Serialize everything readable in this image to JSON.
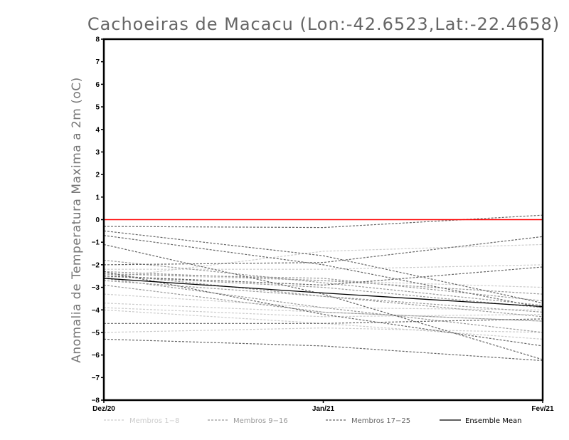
{
  "chart_data": {
    "type": "line",
    "title": "Cachoeiras de Macacu (Lon:-42.6523,Lat:-22.4658)",
    "xlabel": "",
    "ylabel": "Anomalia de Temperatura Maxima a 2m (oC)",
    "categories": [
      "Dez/20",
      "Jan/21",
      "Fev/21"
    ],
    "ylim": [
      -8,
      8
    ],
    "yticks": [
      -8,
      -7,
      -6,
      -5,
      -4,
      -3,
      -2,
      -1,
      0,
      1,
      2,
      3,
      4,
      5,
      6,
      7,
      8
    ],
    "grid": false,
    "legend_position": "bottom",
    "reference_line": {
      "value": 0,
      "color": "#ff0000"
    },
    "legend": [
      {
        "label": "Membros 1-8",
        "color": "#cccccc",
        "dash": "dashed"
      },
      {
        "label": "Membros 9-16",
        "color": "#999999",
        "dash": "dashed"
      },
      {
        "label": "Membros 17-25",
        "color": "#666666",
        "dash": "dashed"
      },
      {
        "label": "Ensemble Mean",
        "color": "#000000",
        "dash": "solid"
      }
    ],
    "series": [
      {
        "group": 1,
        "values": [
          -3.3,
          -3.9,
          -4.0
        ]
      },
      {
        "group": 1,
        "values": [
          -3.7,
          -4.1,
          -4.5
        ]
      },
      {
        "group": 1,
        "values": [
          -4.0,
          -4.6,
          -5.3
        ]
      },
      {
        "group": 1,
        "values": [
          -5.0,
          -4.8,
          -5.0
        ]
      },
      {
        "group": 1,
        "values": [
          -2.6,
          -1.4,
          -1.1
        ]
      },
      {
        "group": 1,
        "values": [
          -2.4,
          -2.7,
          -3.0
        ]
      },
      {
        "group": 1,
        "values": [
          -3.9,
          -4.3,
          -4.2
        ]
      },
      {
        "group": 1,
        "values": [
          -2.2,
          -2.2,
          -2.0
        ]
      },
      {
        "group": 2,
        "values": [
          -2.5,
          -3.0,
          -3.9
        ]
      },
      {
        "group": 2,
        "values": [
          -2.7,
          -3.4,
          -4.1
        ]
      },
      {
        "group": 2,
        "values": [
          -2.3,
          -2.7,
          -3.3
        ]
      },
      {
        "group": 2,
        "values": [
          -2.4,
          -2.6,
          -3.6
        ]
      },
      {
        "group": 2,
        "values": [
          -1.8,
          -2.8,
          -3.8
        ]
      },
      {
        "group": 2,
        "values": [
          -2.9,
          -4.1,
          -4.5
        ]
      },
      {
        "group": 2,
        "values": [
          -2.6,
          -3.9,
          -5.0
        ]
      },
      {
        "group": 2,
        "values": [
          -2.4,
          -3.4,
          -4.3
        ]
      },
      {
        "group": 3,
        "values": [
          -0.3,
          -0.35,
          0.2
        ]
      },
      {
        "group": 3,
        "values": [
          -0.5,
          -1.6,
          -3.7
        ]
      },
      {
        "group": 3,
        "values": [
          -0.7,
          -2.0,
          -3.9
        ]
      },
      {
        "group": 3,
        "values": [
          -1.1,
          -3.3,
          -6.2
        ]
      },
      {
        "group": 3,
        "values": [
          -2.0,
          -1.9,
          -0.75
        ]
      },
      {
        "group": 3,
        "values": [
          -2.5,
          -2.9,
          -2.1
        ]
      },
      {
        "group": 3,
        "values": [
          -4.6,
          -4.6,
          -4.4
        ]
      },
      {
        "group": 3,
        "values": [
          -5.3,
          -5.6,
          -6.25
        ]
      },
      {
        "group": 3,
        "values": [
          -2.3,
          -4.2,
          -5.6
        ]
      },
      {
        "group": 0,
        "name": "Ensemble Mean",
        "values": [
          -2.6,
          -3.25,
          -3.85
        ]
      }
    ]
  }
}
